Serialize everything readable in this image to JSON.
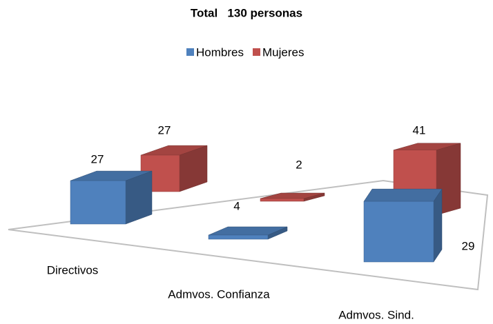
{
  "chart_data": {
    "type": "bar3d",
    "title": "Total   130 personas",
    "categories": [
      "Directivos",
      "Admvos. Confianza",
      "Admvos. Sind."
    ],
    "series": [
      {
        "name": "Hombres",
        "color": "#4f81bd",
        "values": [
          27,
          4,
          29
        ]
      },
      {
        "name": "Mujeres",
        "color": "#c0504d",
        "values": [
          27,
          2,
          41
        ]
      }
    ]
  }
}
